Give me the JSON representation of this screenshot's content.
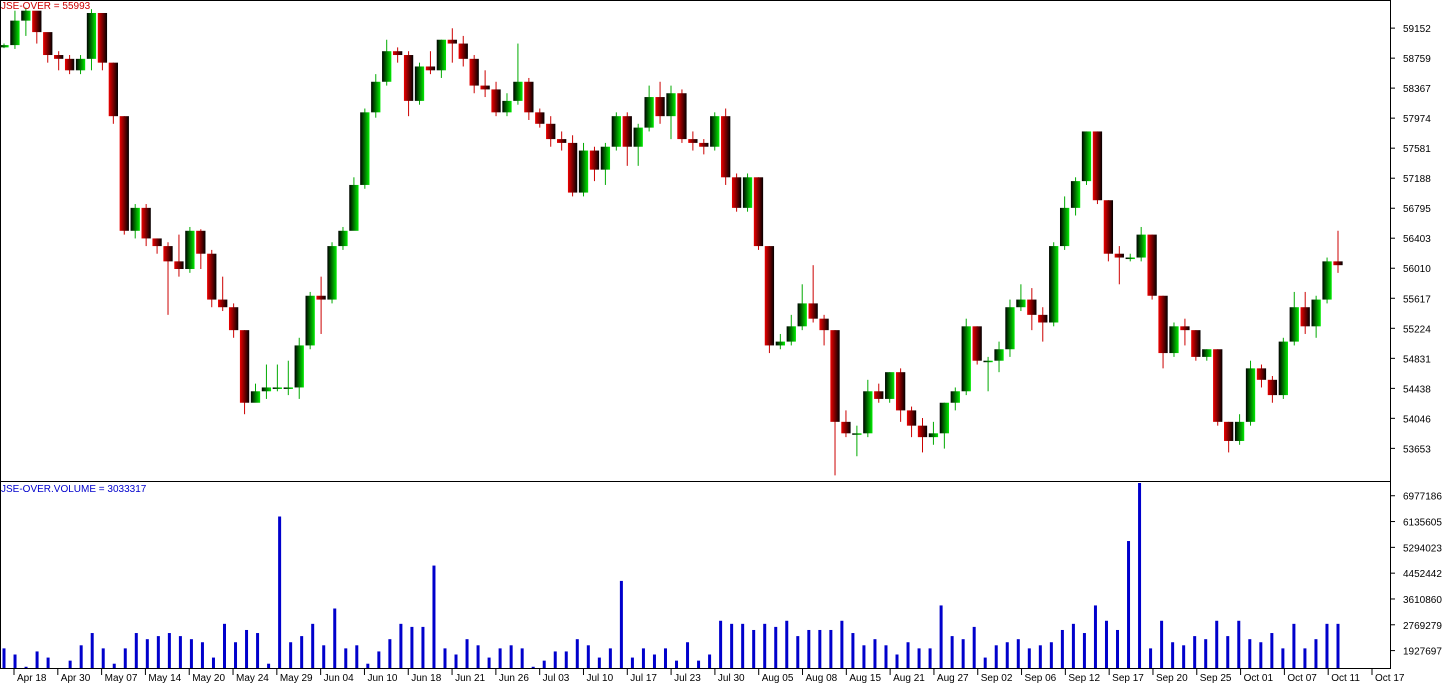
{
  "chart_data": [
    {
      "type": "candlestick",
      "title": "JSE-OVER = 55993",
      "x_tick_labels": [
        "Apr 18",
        "Apr 30",
        "May 07",
        "May 14",
        "May 20",
        "May 24",
        "May 29",
        "Jun 04",
        "Jun 10",
        "Jun 18",
        "Jun 21",
        "Jun 26",
        "Jul 03",
        "Jul 10",
        "Jul 17",
        "Jul 23",
        "Jul 30",
        "Aug 05",
        "Aug 08",
        "Aug 15",
        "Aug 21",
        "Aug 27",
        "Sep 02",
        "Sep 06",
        "Sep 12",
        "Sep 17",
        "Sep 20",
        "Sep 25",
        "Oct 01",
        "Oct 07",
        "Oct 11",
        "Oct 17"
      ],
      "y_tick_labels": [
        59152,
        58759,
        58367,
        57974,
        57581,
        57188,
        56795,
        56403,
        56010,
        55617,
        55224,
        54831,
        54438,
        54046,
        53653
      ],
      "y_range": [
        53226,
        59520
      ],
      "colors": {
        "up": "#00ee00",
        "down": "#ee0000",
        "body_shade": "#000000",
        "title": "#cc0000"
      },
      "candles": [
        [
          58900,
          58930,
          58950,
          58890
        ],
        [
          58930,
          59250,
          59380,
          58880
        ],
        [
          59250,
          59380,
          59420,
          59050
        ],
        [
          59380,
          59100,
          59200,
          58950
        ],
        [
          59100,
          58800,
          58950,
          58700
        ],
        [
          58800,
          58750,
          58850,
          58600
        ],
        [
          58750,
          58600,
          58800,
          58550
        ],
        [
          58600,
          58750,
          58800,
          58550
        ],
        [
          58750,
          59350,
          59400,
          58600
        ],
        [
          59350,
          58700,
          59350,
          58600
        ],
        [
          58700,
          58000,
          58700,
          57900
        ],
        [
          58000,
          56500,
          58000,
          56450
        ],
        [
          56500,
          56800,
          56850,
          56400
        ],
        [
          56800,
          56400,
          56850,
          56300
        ],
        [
          56400,
          56300,
          56400,
          56200
        ],
        [
          56300,
          56100,
          56350,
          55400
        ],
        [
          56100,
          56000,
          56450,
          55900
        ],
        [
          56000,
          56500,
          56550,
          55950
        ],
        [
          56500,
          56200,
          56520,
          56000
        ],
        [
          56200,
          55600,
          56250,
          55500
        ],
        [
          55600,
          55500,
          55900,
          55450
        ],
        [
          55500,
          55200,
          55550,
          55100
        ],
        [
          55200,
          54250,
          55200,
          54100
        ],
        [
          54250,
          54400,
          54500,
          54300
        ],
        [
          54400,
          54450,
          54750,
          54300
        ],
        [
          54450,
          54450,
          54750,
          54400
        ],
        [
          54450,
          54450,
          54800,
          54350
        ],
        [
          54450,
          55000,
          55100,
          54300
        ],
        [
          55000,
          55650,
          55700,
          54950
        ],
        [
          55650,
          55600,
          55900,
          55150
        ],
        [
          55600,
          56300,
          56350,
          55550
        ],
        [
          56300,
          56500,
          56550,
          56250
        ],
        [
          56500,
          57100,
          57200,
          56950
        ],
        [
          57100,
          58050,
          58100,
          57050
        ],
        [
          58050,
          58450,
          58550,
          57980
        ],
        [
          58450,
          58850,
          59000,
          58400
        ],
        [
          58850,
          58800,
          58900,
          58700
        ],
        [
          58800,
          58200,
          58850,
          58000
        ],
        [
          58200,
          58650,
          58700,
          58150
        ],
        [
          58650,
          58600,
          58850,
          58550
        ],
        [
          58600,
          59000,
          59000,
          58500
        ],
        [
          59000,
          58950,
          59150,
          58700
        ],
        [
          58950,
          58750,
          59050,
          58650
        ],
        [
          58750,
          58400,
          58800,
          58300
        ],
        [
          58400,
          58350,
          58600,
          58250
        ],
        [
          58350,
          58050,
          58450,
          58000
        ],
        [
          58050,
          58200,
          58300,
          58000
        ],
        [
          58200,
          58450,
          58950,
          58150
        ],
        [
          58450,
          58050,
          58500,
          57950
        ],
        [
          58050,
          57900,
          58100,
          57850
        ],
        [
          57900,
          57700,
          58000,
          57600
        ],
        [
          57700,
          57650,
          57800,
          57550
        ],
        [
          57650,
          57000,
          57750,
          56950
        ],
        [
          57000,
          57550,
          57650,
          56950
        ],
        [
          57550,
          57300,
          57600,
          57150
        ],
        [
          57300,
          57600,
          57650,
          57100
        ],
        [
          57600,
          58000,
          58050,
          57550
        ],
        [
          58000,
          57600,
          58050,
          57350
        ],
        [
          57600,
          57850,
          57900,
          57350
        ],
        [
          57850,
          58250,
          58400,
          57800
        ],
        [
          58250,
          58000,
          58450,
          57900
        ],
        [
          58000,
          58300,
          58400,
          57700
        ],
        [
          58300,
          57700,
          58350,
          57650
        ],
        [
          57700,
          57650,
          57800,
          57550
        ],
        [
          57650,
          57600,
          57700,
          57500
        ],
        [
          57600,
          58000,
          58050,
          57550
        ],
        [
          58000,
          57200,
          58100,
          57100
        ],
        [
          57200,
          56800,
          57250,
          56750
        ],
        [
          56800,
          57200,
          57250,
          56750
        ],
        [
          57200,
          56300,
          57200,
          56250
        ],
        [
          56300,
          55000,
          56300,
          54900
        ],
        [
          55000,
          55050,
          55150,
          54950
        ],
        [
          55050,
          55250,
          55400,
          55000
        ],
        [
          55250,
          55550,
          55800,
          55200
        ],
        [
          55550,
          55350,
          56050,
          55300
        ],
        [
          55350,
          55200,
          55400,
          55000
        ],
        [
          55200,
          54000,
          55200,
          53300
        ],
        [
          54000,
          53850,
          54150,
          53800
        ],
        [
          53850,
          53850,
          53950,
          53550
        ],
        [
          53850,
          54400,
          54550,
          53800
        ],
        [
          54400,
          54300,
          54500,
          54250
        ],
        [
          54300,
          54650,
          54650,
          54250
        ],
        [
          54650,
          54150,
          54700,
          54000
        ],
        [
          54150,
          53950,
          54200,
          53800
        ],
        [
          53950,
          53800,
          54050,
          53600
        ],
        [
          53800,
          53850,
          54000,
          53700
        ],
        [
          53850,
          54250,
          54250,
          53650
        ],
        [
          54250,
          54400,
          54450,
          54150
        ],
        [
          54400,
          55250,
          55350,
          54350
        ],
        [
          55250,
          54800,
          55250,
          54750
        ],
        [
          54800,
          54800,
          54850,
          54400
        ],
        [
          54800,
          54950,
          55050,
          54650
        ],
        [
          54950,
          55500,
          55600,
          54850
        ],
        [
          55500,
          55600,
          55800,
          55450
        ],
        [
          55600,
          55400,
          55750,
          55200
        ],
        [
          55400,
          55300,
          55500,
          55050
        ],
        [
          55300,
          56300,
          56350,
          55250
        ],
        [
          56300,
          56800,
          56950,
          56250
        ],
        [
          56800,
          57150,
          57200,
          56700
        ],
        [
          57150,
          57800,
          57800,
          57100
        ],
        [
          57800,
          56900,
          57800,
          56850
        ],
        [
          56900,
          56200,
          56900,
          56100
        ],
        [
          56200,
          56150,
          56300,
          55800
        ],
        [
          56150,
          56150,
          56200,
          56100
        ],
        [
          56150,
          56450,
          56550,
          56100
        ],
        [
          56450,
          55650,
          56450,
          55600
        ],
        [
          55650,
          54900,
          55650,
          54700
        ],
        [
          54900,
          55250,
          55300,
          54850
        ],
        [
          55250,
          55200,
          55350,
          55000
        ],
        [
          55200,
          54850,
          55200,
          54800
        ],
        [
          54850,
          54950,
          54950,
          54800
        ],
        [
          54950,
          54000,
          54950,
          53950
        ],
        [
          54000,
          53750,
          54000,
          53600
        ],
        [
          53750,
          54000,
          54100,
          53700
        ],
        [
          54000,
          54700,
          54800,
          53950
        ],
        [
          54700,
          54550,
          54750,
          54450
        ],
        [
          54550,
          54350,
          54600,
          54250
        ],
        [
          54350,
          55050,
          55100,
          54300
        ],
        [
          55050,
          55500,
          55700,
          55000
        ],
        [
          55500,
          55250,
          55700,
          55150
        ],
        [
          55250,
          55600,
          55650,
          55100
        ],
        [
          55600,
          56100,
          56150,
          55550
        ],
        [
          56100,
          56050,
          56500,
          55950
        ]
      ]
    },
    {
      "type": "bar",
      "title": "JSE-OVER.VOLUME = 3033317",
      "y_tick_labels": [
        6977186,
        6135605,
        5294023,
        4452442,
        3610860,
        2769279,
        1927697
      ],
      "y_range": [
        1360000,
        7425000
      ],
      "colors": {
        "bar": "#0000cc",
        "title": "#0000cc"
      },
      "values": [
        2000000,
        1800000,
        1400000,
        1900000,
        1700000,
        1300000,
        1600000,
        2100000,
        2500000,
        2000000,
        1500000,
        2000000,
        2500000,
        2300000,
        2400000,
        2500000,
        2400000,
        2300000,
        2200000,
        1700000,
        2800000,
        2200000,
        2600000,
        2500000,
        1500000,
        6300000,
        2200000,
        2400000,
        2800000,
        2100000,
        3300000,
        2000000,
        2100000,
        1500000,
        1900000,
        2300000,
        2800000,
        2700000,
        2700000,
        4700000,
        2000000,
        1800000,
        2300000,
        2100000,
        1700000,
        2000000,
        2100000,
        2000000,
        1400000,
        1600000,
        1900000,
        1900000,
        2300000,
        2100000,
        1700000,
        2000000,
        4200000,
        1700000,
        2000000,
        1800000,
        2000000,
        1600000,
        2200000,
        1600000,
        1800000,
        2900000,
        2800000,
        2800000,
        2600000,
        2800000,
        2700000,
        2900000,
        2400000,
        2600000,
        2600000,
        2600000,
        2900000,
        2500000,
        2100000,
        2300000,
        2100000,
        1800000,
        2200000,
        2000000,
        2000000,
        3400000,
        2400000,
        2300000,
        2700000,
        1700000,
        2100000,
        2200000,
        2300000,
        2000000,
        2100000,
        2200000,
        2600000,
        2800000,
        2500000,
        3400000,
        2900000,
        2600000,
        5500000,
        7600000,
        2000000,
        2900000,
        2200000,
        2100000,
        2400000,
        2300000,
        2900000,
        2400000,
        2900000,
        2300000,
        2200000,
        2500000,
        2000000,
        2800000,
        2000000,
        2300000,
        2800000,
        2800000
      ]
    }
  ]
}
